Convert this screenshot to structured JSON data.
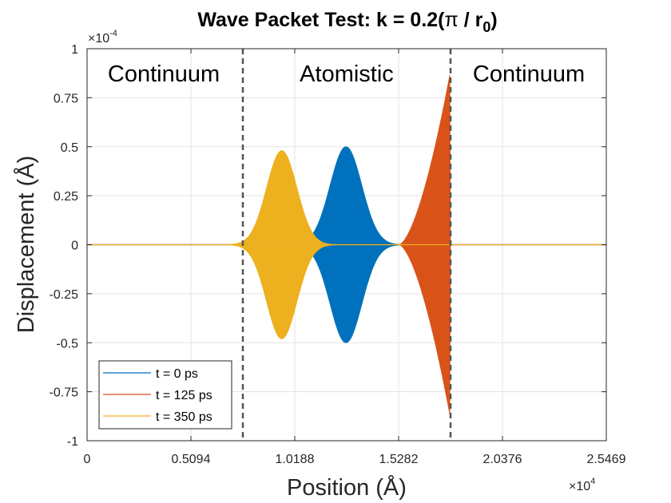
{
  "chart_data": {
    "type": "line",
    "title_main": "Wave Packet Test: k = 0.2(",
    "title_pi": "π",
    "title_slash": " / r",
    "title_sub": "0",
    "title_close": ")",
    "xlabel": "Position (Å)",
    "ylabel": "Displacement (Å)",
    "x_multiplier": "×10",
    "x_multiplier_exp": "4",
    "y_multiplier": "×10",
    "y_multiplier_exp": "-4",
    "xlim": [
      0,
      2.5469
    ],
    "ylim": [
      -1,
      1
    ],
    "xticks": [
      0,
      0.5094,
      1.0188,
      1.5282,
      2.0376,
      2.5469
    ],
    "xtick_labels": [
      "0",
      "0.5094",
      "1.0188",
      "1.5282",
      "2.0376",
      "2.5469"
    ],
    "yticks": [
      1,
      0.75,
      0.5,
      0.25,
      0,
      -0.25,
      -0.5,
      -0.75,
      -1
    ],
    "ytick_labels": [
      "1",
      "0.75",
      "0.5",
      "0.25",
      "0",
      "-0.25",
      "-0.5",
      "-0.75",
      "-1"
    ],
    "grid": true,
    "region_boundaries": [
      0.7641,
      1.7829
    ],
    "regions": [
      "Continuum",
      "Atomistic",
      "Continuum"
    ],
    "legend_location": "bottom-left",
    "series": [
      {
        "name": "t = 0 ps",
        "color": "#0072BD",
        "center": 1.27,
        "width": 0.11,
        "amplitude": 0.5,
        "profile": "gaussian"
      },
      {
        "name": "t = 125 ps",
        "color": "#D95319",
        "start": 1.53,
        "end": 1.78,
        "amplitude_end": 0.87,
        "profile": "rising"
      },
      {
        "name": "t = 350 ps",
        "color": "#EDB120",
        "center": 0.955,
        "width": 0.105,
        "amplitude": 0.48,
        "profile": "gaussian"
      }
    ]
  }
}
